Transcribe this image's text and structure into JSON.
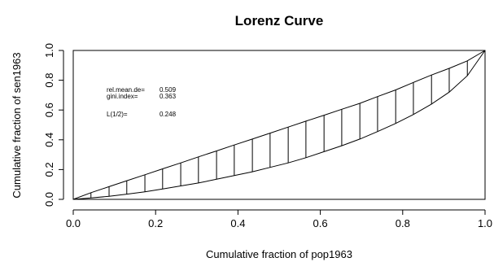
{
  "chart_data": {
    "type": "line",
    "title": "Lorenz Curve",
    "xlabel": "Cumulative fraction of pop1963",
    "ylabel": "Cumulative fraction of sen1963",
    "xlim": [
      0,
      1
    ],
    "ylim": [
      0,
      1
    ],
    "x_ticks": [
      "0.0",
      "0.2",
      "0.4",
      "0.6",
      "0.8",
      "1.0"
    ],
    "y_ticks": [
      "0.0",
      "0.2",
      "0.4",
      "0.6",
      "0.8",
      "1.0"
    ],
    "grid": false,
    "series": [
      {
        "x": [
          0.0,
          0.043,
          0.087,
          0.13,
          0.174,
          0.217,
          0.261,
          0.304,
          0.348,
          0.391,
          0.435,
          0.478,
          0.522,
          0.565,
          0.609,
          0.652,
          0.696,
          0.739,
          0.783,
          0.826,
          0.87,
          0.913,
          0.957,
          1.0
        ],
        "y": [
          0.0,
          0.045,
          0.085,
          0.125,
          0.165,
          0.205,
          0.245,
          0.285,
          0.325,
          0.365,
          0.405,
          0.445,
          0.485,
          0.525,
          0.565,
          0.605,
          0.645,
          0.69,
          0.735,
          0.785,
          0.835,
          0.88,
          0.93,
          1.0
        ]
      },
      {
        "x": [
          0.0,
          0.043,
          0.087,
          0.13,
          0.174,
          0.217,
          0.261,
          0.304,
          0.348,
          0.391,
          0.435,
          0.478,
          0.522,
          0.565,
          0.609,
          0.652,
          0.696,
          0.739,
          0.783,
          0.826,
          0.87,
          0.913,
          0.957,
          1.0
        ],
        "y": [
          0.0,
          0.01,
          0.02,
          0.035,
          0.05,
          0.07,
          0.09,
          0.11,
          0.135,
          0.16,
          0.185,
          0.215,
          0.245,
          0.28,
          0.32,
          0.36,
          0.405,
          0.455,
          0.51,
          0.57,
          0.64,
          0.72,
          0.83,
          1.0
        ]
      }
    ],
    "annotations": [
      {
        "label": "rel.mean.de=",
        "value": "0.509"
      },
      {
        "label": "gini.index=",
        "value": "0.363"
      },
      {
        "label": "L(1/2)=",
        "value": "0.248"
      }
    ]
  }
}
